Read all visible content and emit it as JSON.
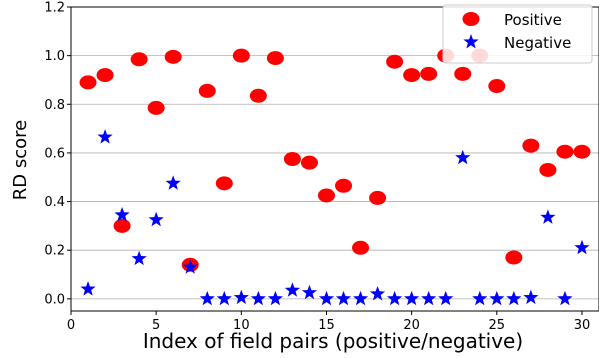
{
  "chart_data": {
    "type": "scatter",
    "xlabel": "Index of field pairs (positive/negative)",
    "ylabel": "RD score",
    "xlim": [
      0,
      31
    ],
    "ylim": [
      -0.05,
      1.2
    ],
    "xticks": [
      0,
      5,
      10,
      15,
      20,
      25,
      30
    ],
    "yticks": [
      0.0,
      0.2,
      0.4,
      0.6,
      0.8,
      1.0,
      1.2
    ],
    "ytick_labels": [
      "0.0",
      "0.2",
      "0.4",
      "0.6",
      "0.8",
      "1.0",
      "1.2"
    ],
    "grid": "horizontal",
    "legend_position": "top-right",
    "x": [
      1,
      2,
      3,
      4,
      5,
      6,
      7,
      8,
      9,
      10,
      11,
      12,
      13,
      14,
      15,
      16,
      17,
      18,
      19,
      20,
      21,
      22,
      23,
      24,
      25,
      26,
      27,
      28,
      29,
      30
    ],
    "series": [
      {
        "name": "Positive",
        "marker": "circle",
        "color": "#ff0000",
        "values": [
          0.89,
          0.92,
          0.3,
          0.985,
          0.785,
          0.995,
          0.14,
          0.855,
          0.475,
          1.0,
          0.835,
          0.99,
          0.575,
          0.56,
          0.425,
          0.465,
          0.21,
          0.415,
          0.975,
          0.92,
          0.925,
          1.0,
          0.925,
          1.0,
          0.875,
          0.17,
          0.63,
          0.53,
          0.605,
          0.605
        ]
      },
      {
        "name": "Negative",
        "marker": "star",
        "color": "#0000ff",
        "values": [
          0.04,
          0.665,
          0.345,
          0.165,
          0.325,
          0.475,
          0.13,
          0.0,
          0.0,
          0.005,
          0.0,
          0.0,
          0.035,
          0.025,
          0.0,
          0.0,
          0.0,
          0.02,
          0.0,
          0.0,
          0.0,
          0.0,
          0.58,
          0.0,
          0.0,
          0.0,
          0.005,
          0.335,
          0.0,
          0.21
        ]
      }
    ]
  }
}
